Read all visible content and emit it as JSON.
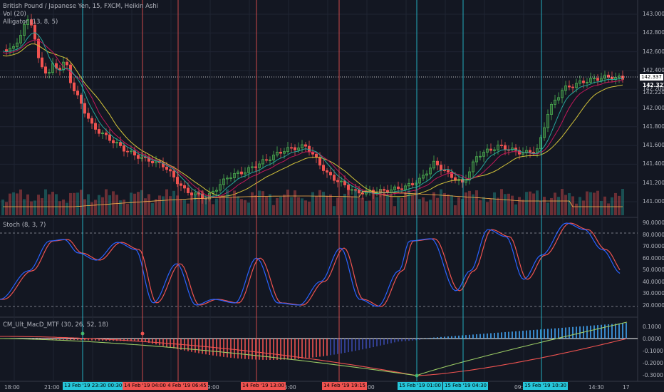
{
  "legend": {
    "title": "British Pound / Japanese Yen, 15, FXCM, Heikin Ashi",
    "vol": "Vol (20)",
    "alligator": "Alligator (13, 8, 5)",
    "stoch": "Stoch (8, 3, 7)",
    "macd": "CM_Ult_MacD_MTF (30, 26, 52, 18)"
  },
  "price_axis": {
    "labels": [
      "143.000",
      "142.800",
      "142.600",
      "142.400",
      "142.200",
      "142.000",
      "141.800",
      "141.600",
      "141.400",
      "141.200",
      "141.000"
    ],
    "current": "142.337",
    "tag2": "142.327",
    "tag3": "142.220"
  },
  "stoch_axis": {
    "labels": [
      "90.0000",
      "80.0000",
      "70.0000",
      "60.0000",
      "50.0000",
      "40.0000",
      "30.0000",
      "20.0000"
    ]
  },
  "macd_axis": {
    "labels": [
      "0.1000",
      "0.0000",
      "-0.1000",
      "-0.2000",
      "-0.3000"
    ]
  },
  "time_axis": {
    "labels": [
      "18:00",
      "21:00",
      "15:00",
      "09:00",
      "15:00",
      "21:00",
      "03:00",
      "09:",
      "14:30",
      "17"
    ]
  },
  "vertical_markers": [
    {
      "label": "13 Feb '19  23:30  00:30",
      "color": "#26c6da"
    },
    {
      "label": "14 Feb '19  04:00  4 Feb '19  06:45",
      "color": "#ef5350"
    },
    {
      "label": "14 Feb '19  13:00",
      "color": "#ef5350"
    },
    {
      "label": "14 Feb '19  19:15",
      "color": "#ef5350"
    },
    {
      "label": "15 Feb '19  01:00",
      "color": "#26c6da"
    },
    {
      "label": "15 Feb '19  04:30",
      "color": "#26c6da"
    },
    {
      "label": "15 Feb '19  10:30",
      "color": "#26c6da"
    }
  ],
  "colors": {
    "bg": "#131722",
    "grid": "#1f2433",
    "up": "#4caf50",
    "down": "#ef5350",
    "jaw": "#d4c43a",
    "teeth": "#c2185b",
    "lips": "#26a69a",
    "stoch_k": "#2962ff",
    "stoch_d": "#ef5350"
  }
}
